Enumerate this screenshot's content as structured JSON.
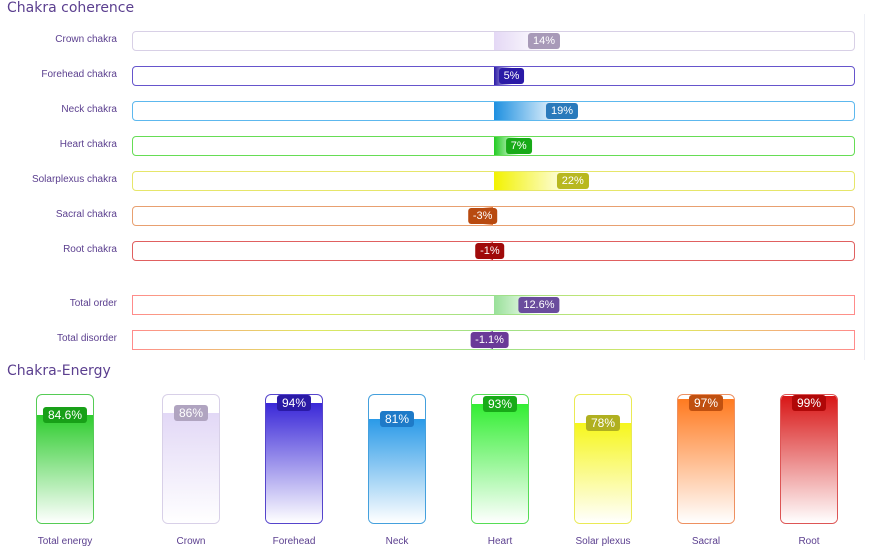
{
  "chart_data": [
    {
      "type": "bar",
      "title": "Chakra coherence",
      "orientation": "horizontal-centered",
      "categories": [
        "Crown chakra",
        "Forehead chakra",
        "Neck chakra",
        "Heart chakra",
        "Solarplexus chakra",
        "Sacral chakra",
        "Root chakra",
        "Total order",
        "Total disorder"
      ],
      "values": [
        14,
        5,
        19,
        7,
        22,
        -3,
        -1,
        12.6,
        -1.1
      ],
      "labels": [
        "14%",
        "5%",
        "19%",
        "7%",
        "22%",
        "-3%",
        "-1%",
        "12.6%",
        "-1.1%"
      ],
      "xlim": [
        -100,
        100
      ],
      "colors": [
        "#e4d8f5",
        "#2a1aa6",
        "#1e90e0",
        "#22cc22",
        "#f2f200",
        "#e07030",
        "#c01010",
        "#98e098",
        "#6a3a98"
      ],
      "label_colors": [
        "#a89ab8",
        "#2a1aa6",
        "#2a7abb",
        "#18aa18",
        "#b8b820",
        "#b84a10",
        "#a00a0a",
        "#6a4d9d",
        "#6a3a98"
      ],
      "border_colors": [
        "#d8d0e6",
        "#6655cc",
        "#5db8ee",
        "#66dd55",
        "#e6e66a",
        "#e8a070",
        "#e06060",
        "#ff9c9c",
        "#e07070"
      ]
    },
    {
      "type": "bar",
      "title": "Chakra-Energy",
      "categories": [
        "Total energy",
        "Crown",
        "Forehead",
        "Neck",
        "Heart",
        "Solar plexus",
        "Sacral",
        "Root"
      ],
      "values": [
        84.6,
        86,
        94,
        81,
        93,
        78,
        97,
        99
      ],
      "labels": [
        "84.6%",
        "86%",
        "94%",
        "81%",
        "93%",
        "78%",
        "97%",
        "99%"
      ],
      "ylim": [
        0,
        100
      ],
      "colors": [
        "#2ecc2e",
        "#e2d8f6",
        "#3a28d8",
        "#2a9ae8",
        "#33ee33",
        "#f6f61c",
        "#ff7a20",
        "#d81616"
      ],
      "label_colors": [
        "#18a018",
        "#b0a4c0",
        "#2a1aa6",
        "#1e7ac8",
        "#18aa18",
        "#b0b020",
        "#c05010",
        "#b00808"
      ],
      "border_colors": [
        "#55cc55",
        "#d8d0e8",
        "#5544cc",
        "#44a0dd",
        "#55dd55",
        "#eaea55",
        "#ee9060",
        "#dd5555"
      ]
    }
  ]
}
